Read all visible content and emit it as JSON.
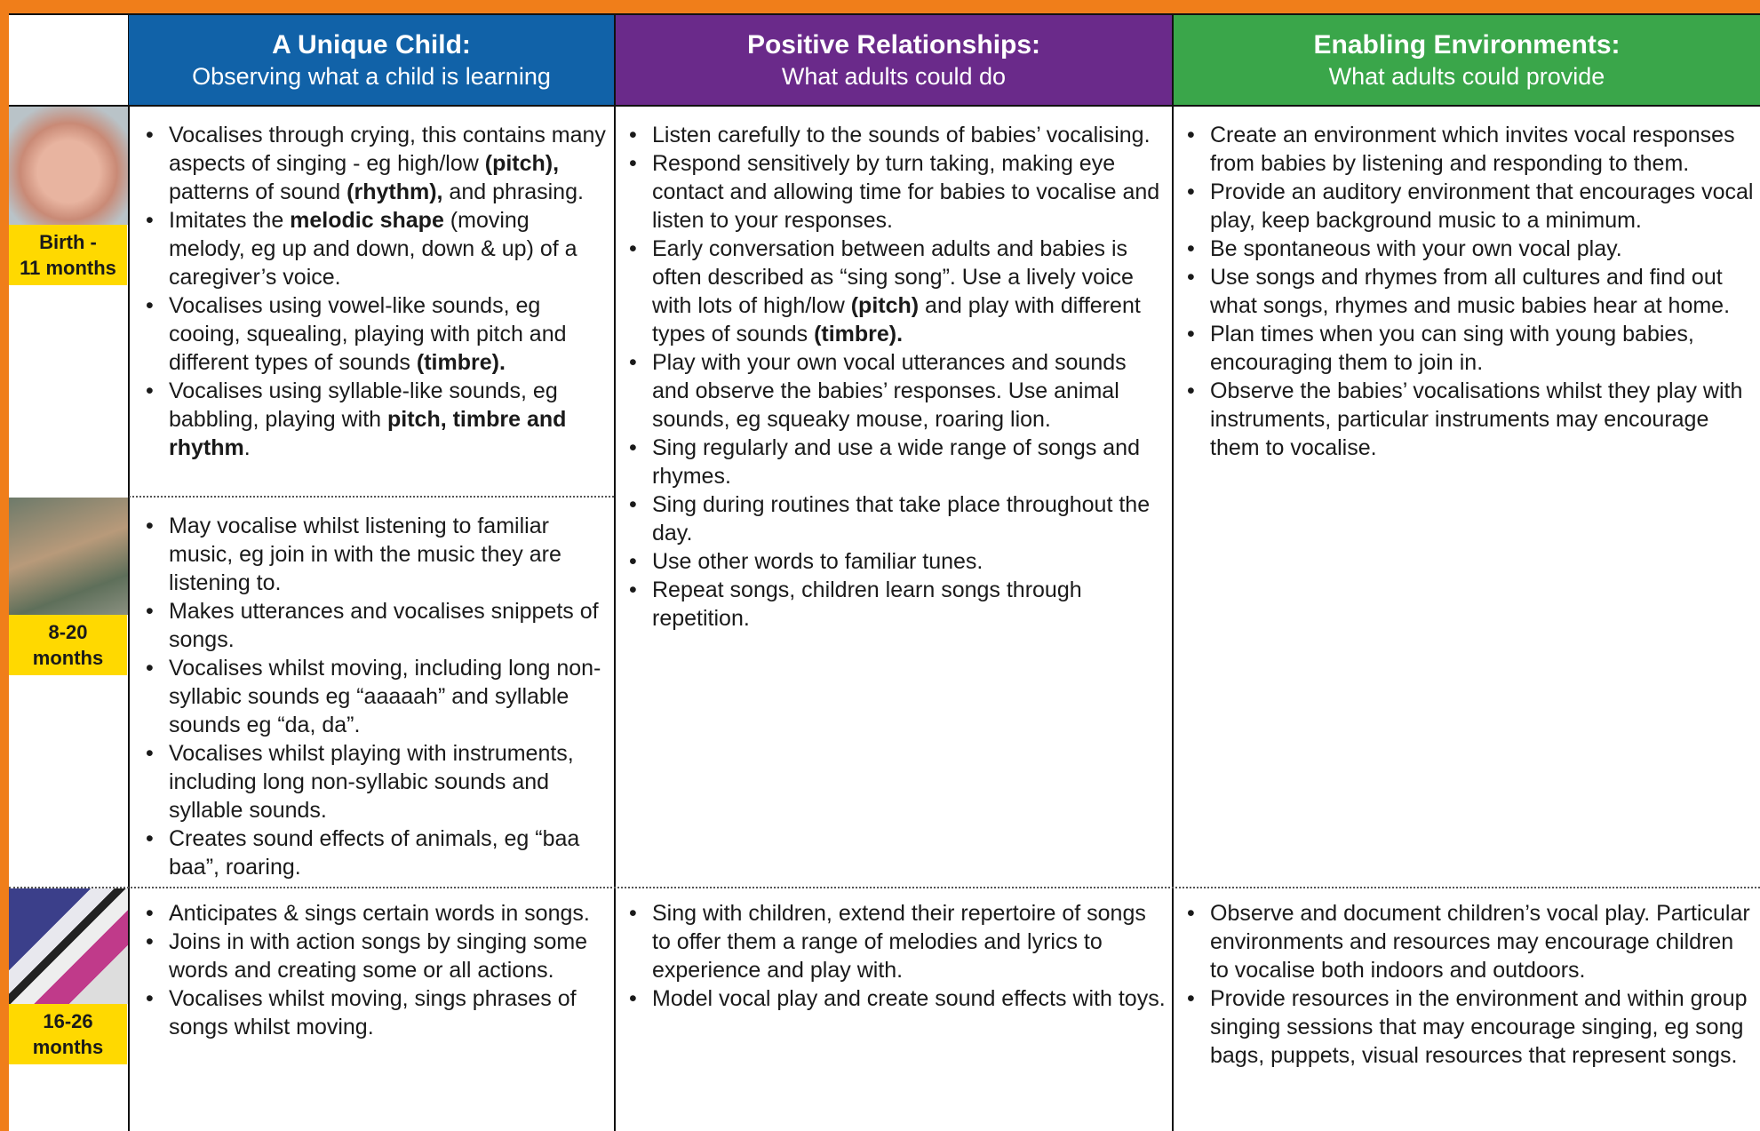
{
  "header": {
    "columns": [
      {
        "title": "A Unique Child:",
        "subtitle": "Observing what a child is learning"
      },
      {
        "title": "Positive Relationships:",
        "subtitle": "What adults could do"
      },
      {
        "title": "Enabling Environments:",
        "subtitle": "What adults could provide"
      }
    ]
  },
  "groups": [
    {
      "stages": [
        {
          "age": "Birth -\n11 months",
          "child": [
            [
              "Vocalises through crying, this contains many aspects of singing - eg high/low ",
              {
                "bold": "(pitch),"
              },
              " patterns of sound ",
              {
                "bold": "(rhythm),"
              },
              " and phrasing."
            ],
            [
              "Imitates the ",
              {
                "bold": "melodic shape"
              },
              " (moving melody, eg up and down, down & up) of a caregiver’s voice."
            ],
            [
              "Vocalises using vowel-like sounds, eg cooing, squealing, playing with pitch and different types of sounds ",
              {
                "bold": "(timbre)."
              }
            ],
            [
              "Vocalises using syllable-like sounds, eg babbling, playing with ",
              {
                "bold": "pitch, timbre and rhythm"
              },
              "."
            ]
          ]
        },
        {
          "age": "8-20\nmonths",
          "child": [
            [
              "May vocalise whilst listening to familiar music, eg join in with the music they are listening to."
            ],
            [
              "Makes utterances and vocalises snippets of songs."
            ],
            [
              "Vocalises whilst moving, including long non-syllabic sounds eg “aaaaah” and syllable sounds eg “da, da”."
            ],
            [
              "Vocalises whilst playing with instruments, including long non-syllabic sounds and syllable sounds."
            ],
            [
              "Creates sound effects of animals, eg “baa baa”, roaring."
            ]
          ]
        }
      ],
      "adults_do": [
        [
          "Listen carefully to the sounds of babies’ vocalising."
        ],
        [
          "Respond sensitively by turn taking, making eye contact and allowing time for babies to vocalise and listen to your responses."
        ],
        [
          "Early conversation between adults and babies is often described as “sing song”. Use a lively voice with lots of high/low ",
          {
            "bold": "(pitch)"
          },
          " and play with different types of sounds ",
          {
            "bold": "(timbre)."
          }
        ],
        [
          "Play with your own vocal utterances and sounds and observe the babies’ responses. Use animal sounds, eg squeaky mouse, roaring lion."
        ],
        [
          "Sing regularly and use a wide range of songs and rhymes."
        ],
        [
          "Sing during routines that take place throughout the day."
        ],
        [
          "Use other words to familiar tunes."
        ],
        [
          "Repeat songs, children learn songs through repetition."
        ]
      ],
      "adults_provide": [
        [
          "Create an environment which invites vocal responses from babies by listening and responding to them."
        ],
        [
          "Provide an auditory environment that encourages vocal play, keep background music to a minimum."
        ],
        [
          "Be spontaneous with your own vocal play."
        ],
        [
          "Use songs and rhymes from all cultures and find out what songs, rhymes and music babies hear at home."
        ],
        [
          "Plan times when you can sing with young babies, encouraging them to join in."
        ],
        [
          "Observe the babies’ vocalisations whilst they play with instruments, particular instruments may encourage them to vocalise."
        ]
      ]
    },
    {
      "stages": [
        {
          "age": "16-26\nmonths",
          "child": [
            [
              "Anticipates & sings certain words in songs."
            ],
            [
              "Joins in with action songs by singing some words and creating some or all actions."
            ],
            [
              "Vocalises whilst moving, sings phrases of songs whilst moving."
            ]
          ]
        }
      ],
      "adults_do": [
        [
          "Sing with children, extend their repertoire of songs to offer them a range of melodies and lyrics to experience and play with."
        ],
        [
          "Model vocal play and create sound effects with toys."
        ]
      ],
      "adults_provide": [
        [
          "Observe and document children’s vocal play. Particular environments and resources may encourage children to vocalise both indoors and outdoors."
        ],
        [
          "Provide resources in the environment and within group singing sessions that may encourage singing, eg song bags, puppets, visual resources that represent songs."
        ]
      ]
    }
  ]
}
